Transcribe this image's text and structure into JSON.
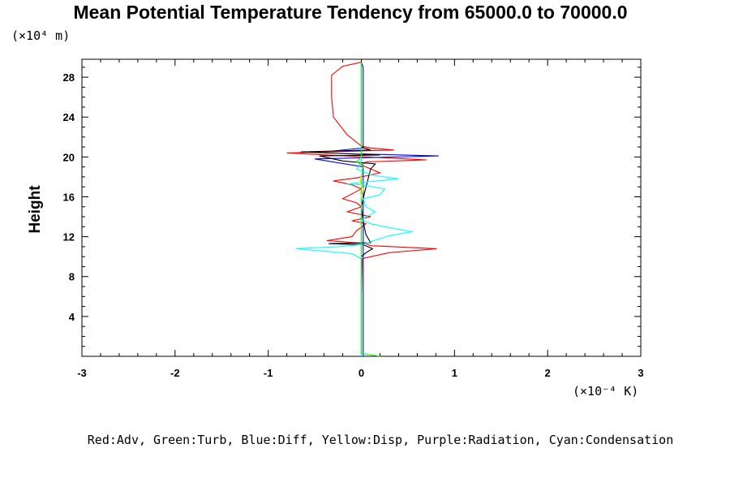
{
  "chart_data": {
    "type": "line",
    "title": "Mean Potential Temperature Tendency from 65000.0 to 70000.0",
    "ylabel": "Height",
    "y_unit": "(×10⁴ m)",
    "x_unit": "(×10⁻⁴ K)",
    "legend_text": "Red:Adv, Green:Turb, Blue:Diff, Yellow:Disp, Purple:Radiation, Cyan:Condensation",
    "legend_placement": "bottom-center",
    "grid": false,
    "xlim": [
      -3,
      3
    ],
    "ylim": [
      0,
      29.8
    ],
    "xticks": [
      {
        "v": -3,
        "label": "-3"
      },
      {
        "v": -2,
        "label": "-2"
      },
      {
        "v": -1,
        "label": "-1"
      },
      {
        "v": 0,
        "label": "0"
      },
      {
        "v": 1,
        "label": "1"
      },
      {
        "v": 2,
        "label": "2"
      },
      {
        "v": 3,
        "label": "3"
      }
    ],
    "yticks": [
      {
        "v": 4,
        "label": "4"
      },
      {
        "v": 8,
        "label": "8"
      },
      {
        "v": 12,
        "label": "12"
      },
      {
        "v": 16,
        "label": "16"
      },
      {
        "v": 20,
        "label": "20"
      },
      {
        "v": 24,
        "label": "24"
      },
      {
        "v": 28,
        "label": "28"
      }
    ],
    "series": [
      {
        "color": "#ff0000",
        "points": [
          [
            0.0,
            0
          ],
          [
            0.0,
            6
          ],
          [
            0.01,
            9.8
          ],
          [
            0.3,
            10.4
          ],
          [
            0.81,
            10.8
          ],
          [
            0.1,
            11.1
          ],
          [
            0.05,
            11.3
          ],
          [
            -0.2,
            11.5
          ],
          [
            -0.37,
            11.6
          ],
          [
            -0.1,
            12.0
          ],
          [
            -0.05,
            12.6
          ],
          [
            0.05,
            13.3
          ],
          [
            -0.1,
            13.6
          ],
          [
            0.1,
            14.0
          ],
          [
            -0.15,
            14.5
          ],
          [
            0.0,
            15.0
          ],
          [
            -0.05,
            15.4
          ],
          [
            -0.2,
            15.8
          ],
          [
            -0.1,
            16.3
          ],
          [
            0.0,
            16.8
          ],
          [
            -0.1,
            17.2
          ],
          [
            -0.3,
            17.6
          ],
          [
            -0.05,
            17.9
          ],
          [
            0.2,
            18.4
          ],
          [
            0.1,
            18.8
          ],
          [
            0.0,
            19.2
          ],
          [
            0.05,
            19.5
          ],
          [
            0.7,
            19.7
          ],
          [
            -0.8,
            20.4
          ],
          [
            0.35,
            20.7
          ],
          [
            0.1,
            20.9
          ],
          [
            0.0,
            21.1
          ],
          [
            -0.15,
            22.2
          ],
          [
            -0.3,
            24.0
          ],
          [
            -0.32,
            26.0
          ],
          [
            -0.32,
            28.2
          ],
          [
            -0.2,
            29.1
          ],
          [
            -0.05,
            29.4
          ],
          [
            0.0,
            29.5
          ]
        ]
      },
      {
        "color": "#0000ff",
        "points": [
          [
            0.02,
            0
          ],
          [
            0.02,
            19.0
          ],
          [
            -0.5,
            19.8
          ],
          [
            0.83,
            20.1
          ],
          [
            0.0,
            20.3
          ],
          [
            0.0,
            20.6
          ],
          [
            -0.3,
            20.6
          ],
          [
            0.02,
            20.9
          ],
          [
            0.02,
            29.0
          ],
          [
            0.0,
            29.5
          ]
        ]
      },
      {
        "color": "#000000",
        "points": [
          [
            0.0,
            0
          ],
          [
            0.0,
            10.0
          ],
          [
            0.05,
            10.4
          ],
          [
            0.12,
            10.8
          ],
          [
            0.02,
            11.2
          ],
          [
            -0.35,
            11.3
          ],
          [
            0.1,
            11.4
          ],
          [
            0.05,
            12.2
          ],
          [
            0.02,
            13.5
          ],
          [
            0.0,
            15.0
          ],
          [
            0.05,
            17.0
          ],
          [
            0.1,
            18.8
          ],
          [
            0.15,
            19.3
          ],
          [
            -0.2,
            19.6
          ],
          [
            -0.45,
            20.1
          ],
          [
            0.2,
            20.2
          ],
          [
            -0.65,
            20.5
          ],
          [
            0.1,
            20.7
          ],
          [
            0.0,
            21.0
          ],
          [
            0.0,
            29.5
          ]
        ]
      },
      {
        "color": "#00ffff",
        "points": [
          [
            0.0,
            0
          ],
          [
            0.0,
            9.8
          ],
          [
            -0.1,
            10.3
          ],
          [
            -0.7,
            10.8
          ],
          [
            -0.25,
            11.0
          ],
          [
            0.0,
            11.2
          ],
          [
            0.1,
            11.5
          ],
          [
            0.3,
            12.1
          ],
          [
            0.55,
            12.5
          ],
          [
            0.3,
            12.9
          ],
          [
            0.1,
            13.3
          ],
          [
            0.0,
            13.7
          ],
          [
            0.15,
            14.5
          ],
          [
            0.05,
            15.0
          ],
          [
            0.02,
            15.8
          ],
          [
            0.2,
            16.2
          ],
          [
            0.25,
            16.8
          ],
          [
            0.0,
            17.2
          ],
          [
            -0.15,
            17.3
          ],
          [
            0.4,
            17.8
          ],
          [
            0.1,
            18.2
          ],
          [
            -0.05,
            18.8
          ],
          [
            0.0,
            19.5
          ],
          [
            0.0,
            29.5
          ]
        ]
      },
      {
        "color": "#00ff00",
        "points": [
          [
            0.2,
            0
          ],
          [
            0.0,
            0.3
          ],
          [
            0.0,
            18.0
          ],
          [
            0.02,
            19.2
          ],
          [
            -0.05,
            19.5
          ],
          [
            0.0,
            20.0
          ],
          [
            0.0,
            29.5
          ]
        ]
      },
      {
        "color": "#ffff00",
        "points": [
          [
            0.0,
            16.0
          ],
          [
            0.02,
            16.8
          ],
          [
            -0.02,
            17.5
          ],
          [
            0.0,
            18.0
          ]
        ]
      }
    ]
  }
}
